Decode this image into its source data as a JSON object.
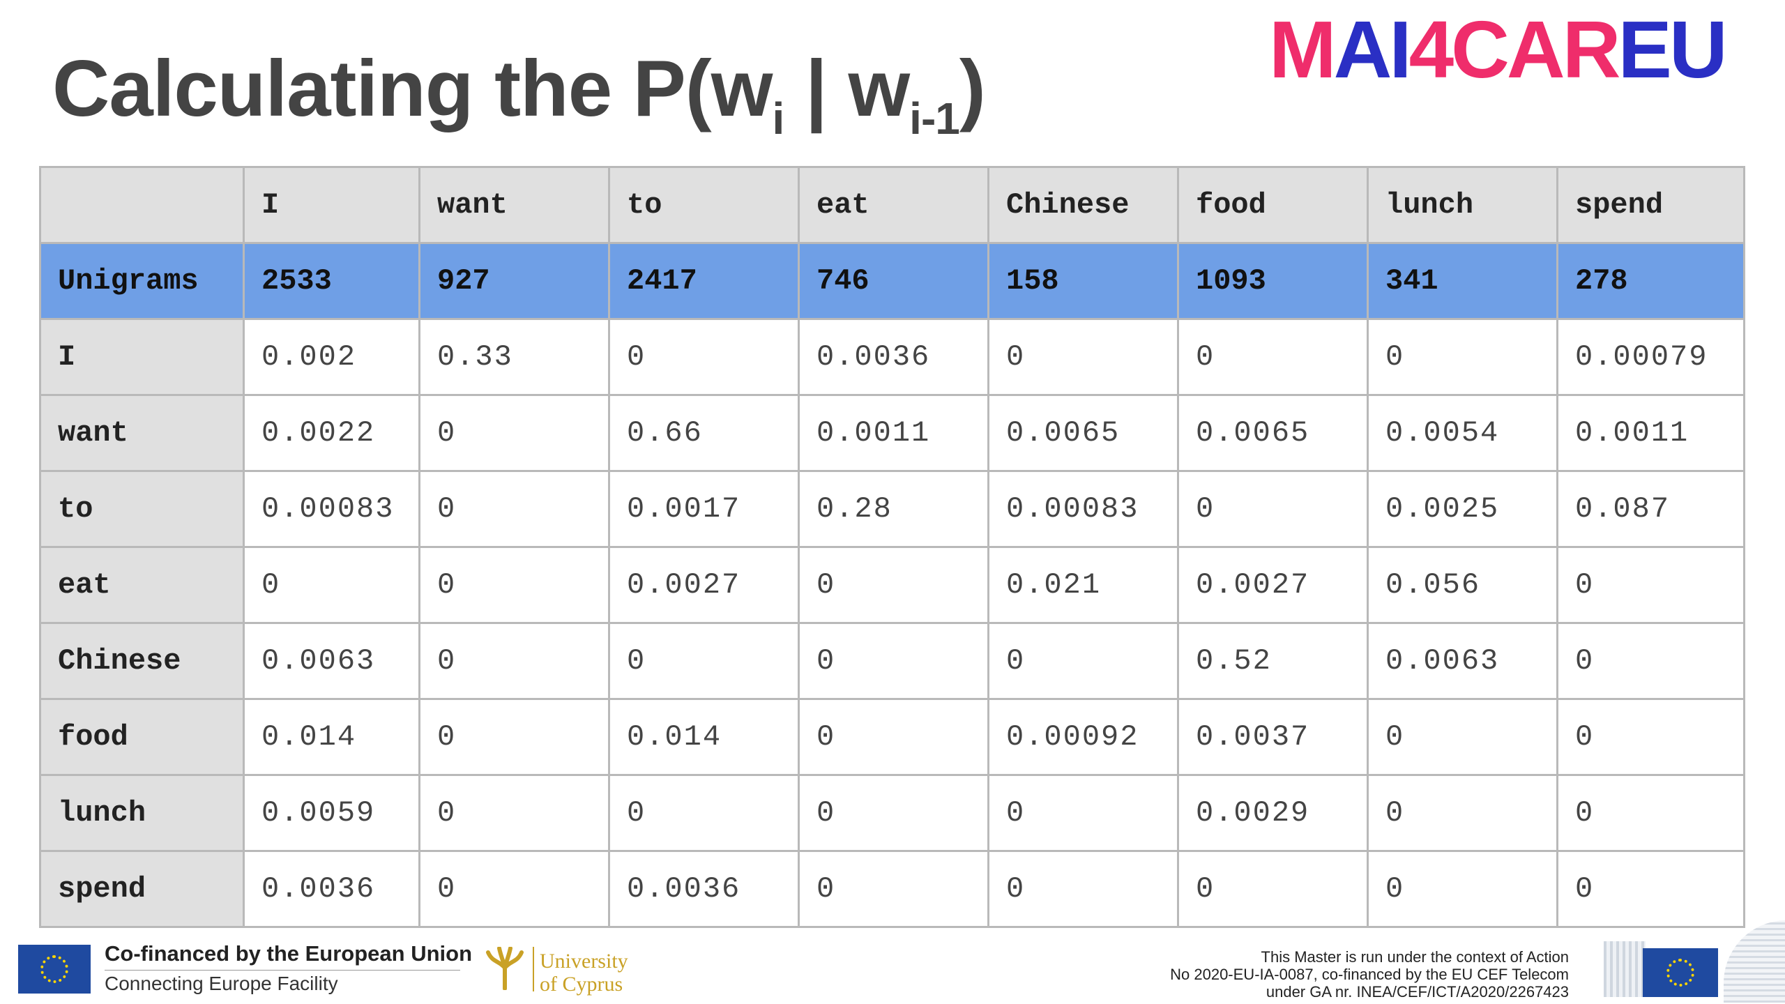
{
  "slide": {
    "title_main": "Calculating the P(w",
    "title_sub1": "i",
    "title_mid": " | w",
    "title_sub2": "i-1",
    "title_end": ")"
  },
  "logo": {
    "part1": "M",
    "part2": "AI",
    "part3": "4CAR",
    "part4": "EU"
  },
  "table": {
    "columns": [
      "",
      "I",
      "want",
      "to",
      "eat",
      "Chinese",
      "food",
      "lunch",
      "spend"
    ],
    "unigrams": {
      "label": "Unigrams",
      "values": [
        "2533",
        "927",
        "2417",
        "746",
        "158",
        "1093",
        "341",
        "278"
      ]
    },
    "rows": [
      {
        "label": "I",
        "values": [
          "0.002",
          "0.33",
          "0",
          "0.0036",
          "0",
          "0",
          "0",
          "0.00079"
        ]
      },
      {
        "label": "want",
        "values": [
          "0.0022",
          "0",
          "0.66",
          "0.0011",
          "0.0065",
          "0.0065",
          "0.0054",
          "0.0011"
        ]
      },
      {
        "label": "to",
        "values": [
          "0.00083",
          "0",
          "0.0017",
          "0.28",
          "0.00083",
          "0",
          "0.0025",
          "0.087"
        ]
      },
      {
        "label": "eat",
        "values": [
          "0",
          "0",
          "0.0027",
          "0",
          "0.021",
          "0.0027",
          "0.056",
          "0"
        ]
      },
      {
        "label": "Chinese",
        "values": [
          "0.0063",
          "0",
          "0",
          "0",
          "0",
          "0.52",
          "0.0063",
          "0"
        ]
      },
      {
        "label": "food",
        "values": [
          "0.014",
          "0",
          "0.014",
          "0",
          "0.00092",
          "0.0037",
          "0",
          "0"
        ]
      },
      {
        "label": "lunch",
        "values": [
          "0.0059",
          "0",
          "0",
          "0",
          "0",
          "0.0029",
          "0",
          "0"
        ]
      },
      {
        "label": "spend",
        "values": [
          "0.0036",
          "0",
          "0.0036",
          "0",
          "0",
          "0",
          "0",
          "0"
        ]
      }
    ]
  },
  "footer": {
    "cofinanced": "Co-financed by the European Union",
    "facility": "Connecting Europe Facility",
    "ucy_line1": "University",
    "ucy_line2": "of Cyprus",
    "action_line1": "This Master is run under the context of Action",
    "action_line2": "No 2020-EU-IA-0087, co-financed by the EU CEF Telecom",
    "action_line3": "under GA nr. INEA/CEF/ICT/A2020/2267423",
    "icons": [
      "eu-flag-icon",
      "university-of-cyprus-logo-icon",
      "european-commission-building-icon"
    ],
    "colors": {
      "eu_blue": "#1f4aa0",
      "eu_yellow": "#ffd500",
      "ucy_gold": "#c9a126"
    }
  },
  "theme": {
    "logo_pink": "#ef2d6b",
    "logo_blue": "#2a2fc4",
    "unigram_row": "#6f9fe6",
    "header_gray": "#e0e0e0"
  }
}
